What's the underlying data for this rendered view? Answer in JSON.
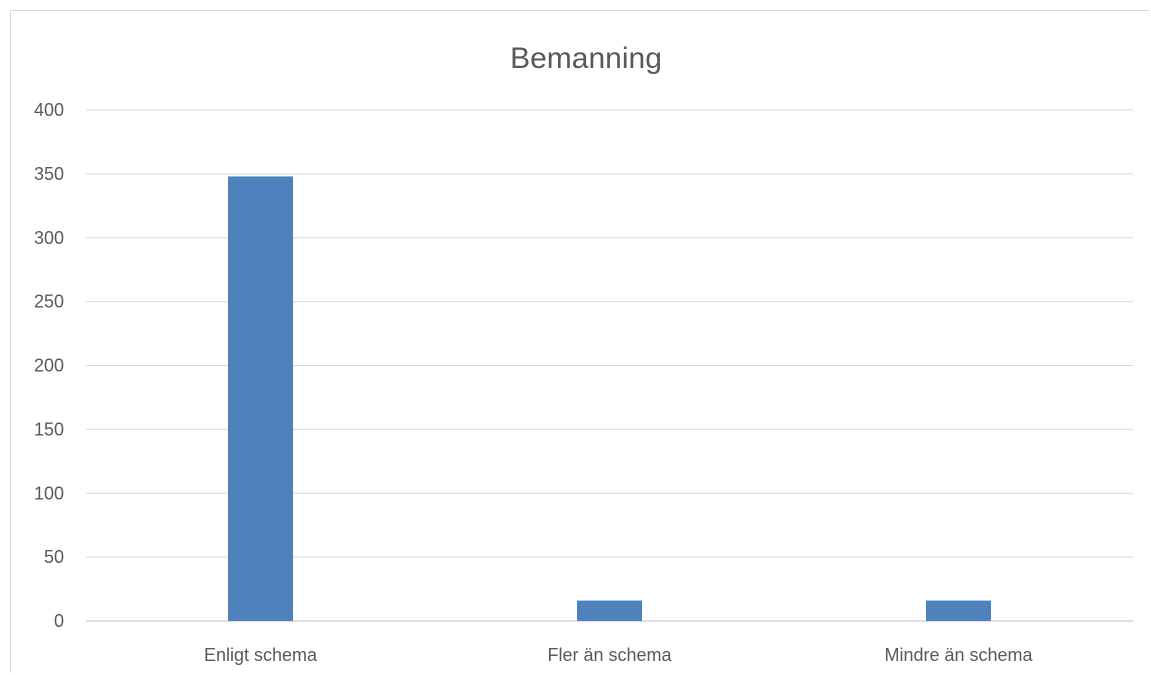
{
  "chart_data": {
    "type": "bar",
    "title": "Bemanning",
    "xlabel": "",
    "ylabel": "",
    "categories": [
      "Enligt schema",
      "Fler än schema",
      "Mindre än schema"
    ],
    "values": [
      348,
      16,
      16
    ],
    "ylim": [
      0,
      400
    ],
    "yticks": [
      0,
      50,
      100,
      150,
      200,
      250,
      300,
      350,
      400
    ],
    "grid": true,
    "legend": "none",
    "bar_color": "#4f81bd"
  }
}
